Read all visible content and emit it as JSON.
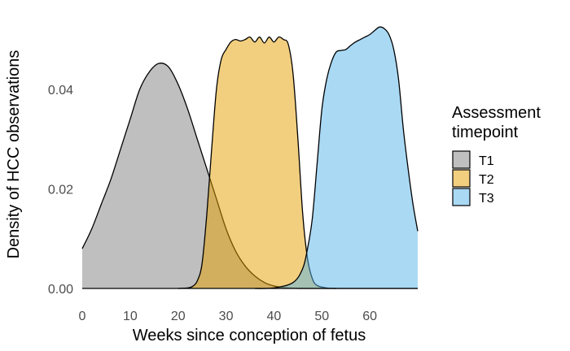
{
  "chart_data": {
    "type": "area",
    "subtype": "density",
    "title": "",
    "xlabel": "Weeks since conception of fetus",
    "ylabel": "Density of HCC observations",
    "xlim": [
      0,
      70
    ],
    "ylim": [
      0,
      0.055
    ],
    "x_ticks": [
      0,
      10,
      20,
      30,
      40,
      50,
      60
    ],
    "y_ticks": [
      0.0,
      0.02,
      0.04
    ],
    "y_tick_labels": [
      "0.00",
      "0.02",
      "0.04"
    ],
    "grid": false,
    "legend": {
      "title": "Assessment timepoint",
      "title_lines": [
        "Assessment",
        "timepoint"
      ],
      "position": "right"
    },
    "series": [
      {
        "name": "T1",
        "color": "#000000",
        "fill": "#808080",
        "opacity": 0.5,
        "points": [
          [
            0,
            0.008
          ],
          [
            2,
            0.012
          ],
          [
            4,
            0.017
          ],
          [
            6,
            0.022
          ],
          [
            8,
            0.028
          ],
          [
            10,
            0.034
          ],
          [
            12,
            0.04
          ],
          [
            14,
            0.0435
          ],
          [
            16,
            0.0452
          ],
          [
            18,
            0.0445
          ],
          [
            20,
            0.041
          ],
          [
            22,
            0.036
          ],
          [
            24,
            0.03
          ],
          [
            26,
            0.024
          ],
          [
            28,
            0.018
          ],
          [
            30,
            0.012
          ],
          [
            32,
            0.0075
          ],
          [
            34,
            0.0045
          ],
          [
            36,
            0.0025
          ],
          [
            38,
            0.0012
          ],
          [
            40,
            0.0005
          ],
          [
            42,
            0.0002
          ],
          [
            44,
            5e-05
          ],
          [
            48,
            0.0
          ],
          [
            70,
            0.0
          ]
        ]
      },
      {
        "name": "T2",
        "color": "#000000",
        "fill": "#E69F00",
        "opacity": 0.5,
        "points": [
          [
            20,
            0.0
          ],
          [
            22,
            0.0001
          ],
          [
            23,
            0.0004
          ],
          [
            24,
            0.0015
          ],
          [
            25,
            0.005
          ],
          [
            26,
            0.015
          ],
          [
            27,
            0.028
          ],
          [
            28,
            0.04
          ],
          [
            29,
            0.046
          ],
          [
            30,
            0.048
          ],
          [
            31,
            0.0495
          ],
          [
            32,
            0.05
          ],
          [
            33,
            0.0497
          ],
          [
            34,
            0.05
          ],
          [
            35,
            0.0505
          ],
          [
            36,
            0.0495
          ],
          [
            37,
            0.0505
          ],
          [
            38,
            0.0493
          ],
          [
            39,
            0.0505
          ],
          [
            40,
            0.0495
          ],
          [
            41,
            0.0505
          ],
          [
            42,
            0.05
          ],
          [
            43,
            0.049
          ],
          [
            44,
            0.043
          ],
          [
            45,
            0.03
          ],
          [
            46,
            0.015
          ],
          [
            47,
            0.006
          ],
          [
            48,
            0.002
          ],
          [
            49,
            0.0006
          ],
          [
            51,
            0.0001
          ],
          [
            53,
            0.0
          ]
        ]
      },
      {
        "name": "T3",
        "color": "#000000",
        "fill": "#56B4E9",
        "opacity": 0.5,
        "points": [
          [
            36,
            0.0
          ],
          [
            40,
            0.0001
          ],
          [
            44,
            0.0012
          ],
          [
            46,
            0.004
          ],
          [
            47,
            0.008
          ],
          [
            48,
            0.014
          ],
          [
            49,
            0.025
          ],
          [
            50,
            0.036
          ],
          [
            51,
            0.042
          ],
          [
            52,
            0.0455
          ],
          [
            53,
            0.0475
          ],
          [
            54,
            0.0478
          ],
          [
            55,
            0.048
          ],
          [
            56,
            0.0488
          ],
          [
            57,
            0.0495
          ],
          [
            58,
            0.05
          ],
          [
            59,
            0.0505
          ],
          [
            60,
            0.051
          ],
          [
            61,
            0.0518
          ],
          [
            62,
            0.0525
          ],
          [
            63,
            0.0522
          ],
          [
            64,
            0.051
          ],
          [
            65,
            0.048
          ],
          [
            66,
            0.042
          ],
          [
            67,
            0.032
          ],
          [
            68,
            0.024
          ],
          [
            69,
            0.017
          ],
          [
            70,
            0.0115
          ]
        ]
      }
    ]
  }
}
